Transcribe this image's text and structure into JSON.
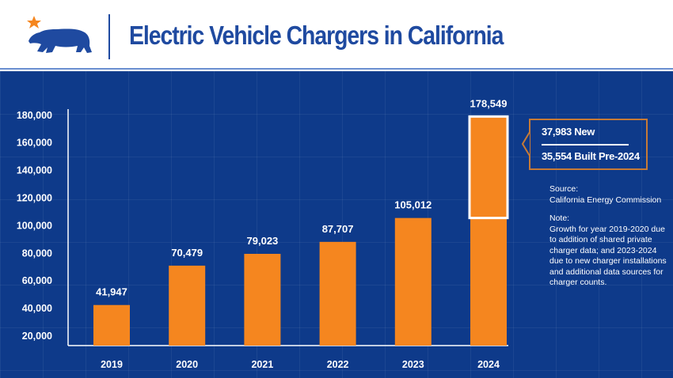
{
  "header": {
    "title": "Electric Vehicle Chargers in California",
    "logo": "california-bear-star-logo"
  },
  "colors": {
    "bar": "#f5861f",
    "background": "#0e3a8a",
    "title": "#1f4aa0",
    "highlight_outline": "#ffffff",
    "callout_border": "#c77a36"
  },
  "chart_data": {
    "type": "bar",
    "title": "Electric Vehicle Chargers in California",
    "categories": [
      "2019",
      "2020",
      "2021",
      "2022",
      "2023",
      "2024"
    ],
    "values": [
      41947,
      70479,
      79023,
      87707,
      105012,
      178549
    ],
    "data_labels": [
      "41,947",
      "70,479",
      "79,023",
      "87,707",
      "105,012",
      "178,549"
    ],
    "yticks": [
      20000,
      40000,
      60000,
      80000,
      100000,
      120000,
      140000,
      160000,
      180000
    ],
    "ytick_labels": [
      "20,000",
      "40,000",
      "60,000",
      "80,000",
      "100,000",
      "120,000",
      "140,000",
      "160,000",
      "180,000"
    ],
    "xlabel": "",
    "ylabel": "",
    "grid": false,
    "highlight": {
      "category": "2024",
      "from": 105012,
      "to": 178549
    }
  },
  "callout": {
    "line1": "37,983 New",
    "line2": "35,554 Built Pre-2024"
  },
  "notes": {
    "source_label": "Source:",
    "source": "California Energy Commission",
    "note_label": "Note:",
    "note": "Growth for year 2019-2020 due to addition of shared private charger data; and 2023-2024 due to new charger installations and additional data sources for charger counts."
  }
}
